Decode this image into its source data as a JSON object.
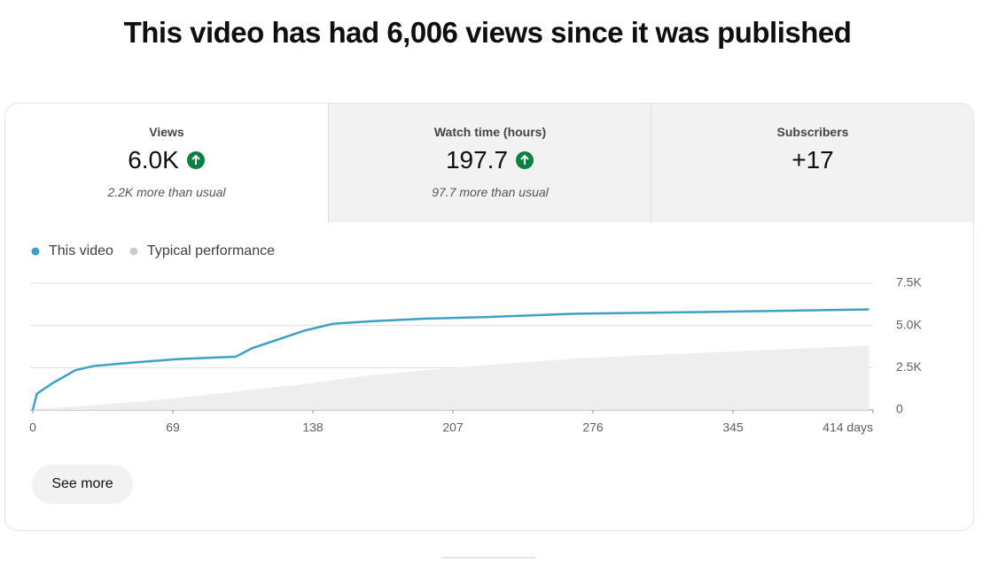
{
  "header": {
    "title": "This video has had 6,006 views since it was published"
  },
  "cards": [
    {
      "label": "Views",
      "value": "6.0K",
      "note": "2.2K more than usual"
    },
    {
      "label": "Watch time (hours)",
      "value": "197.7",
      "note": "97.7 more than usual"
    },
    {
      "label": "Subscribers",
      "value": "+17"
    }
  ],
  "button": "See more",
  "chart_data": {
    "type": "line",
    "x": [
      0,
      2,
      5,
      10,
      21,
      30,
      49,
      71,
      100,
      108,
      124,
      134,
      148,
      167,
      193,
      224,
      268,
      333,
      412
    ],
    "series": [
      {
        "name": "This video",
        "color": "#3ea0c6",
        "values": [
          0,
          950,
          1200,
          1600,
          2350,
          2600,
          2800,
          3000,
          3150,
          3650,
          4300,
          4700,
          5100,
          5250,
          5400,
          5500,
          5700,
          5800,
          5950
        ]
      },
      {
        "name": "Typical performance",
        "color": "#cccccc",
        "area_color": "#eeeeee",
        "values": [
          50,
          60,
          80,
          120,
          200,
          280,
          450,
          700,
          1080,
          1200,
          1400,
          1520,
          1750,
          2050,
          2350,
          2650,
          3050,
          3400,
          3800
        ]
      }
    ],
    "xlim": [
      0,
      414
    ],
    "xticks": [
      0,
      69,
      138,
      207,
      276,
      345,
      {
        "value": 414,
        "label": "414 days"
      }
    ],
    "ylim": [
      0,
      7500
    ],
    "yticks": [
      0,
      {
        "value": 2500,
        "label": "2.5K"
      },
      {
        "value": 5000,
        "label": "5.0K"
      },
      {
        "value": 7500,
        "label": "7.5K"
      }
    ],
    "grid": true
  }
}
